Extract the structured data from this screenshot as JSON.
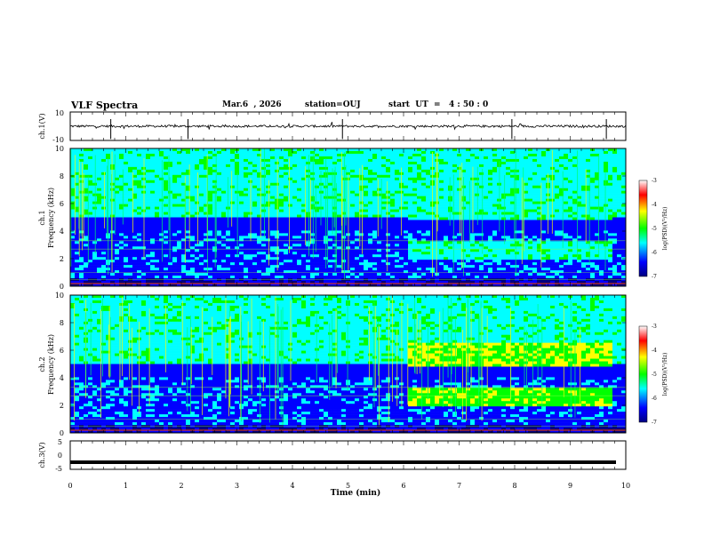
{
  "header": {
    "title": "VLF Spectra",
    "date": "Mar.6  , 2026",
    "station": "station=OUJ",
    "start_ut": "start  UT  =   4 : 50 : 0"
  },
  "chart_data": [
    {
      "type": "line",
      "name": "ch1-waveform",
      "ylabel": "ch.1(V)",
      "ylim": [
        -10,
        10
      ],
      "yticks": [
        "10",
        "-10"
      ],
      "description_value_level": 0,
      "xlim": [
        0,
        10
      ]
    },
    {
      "type": "heatmap",
      "name": "ch1-spectrogram",
      "ylabel": "ch.1\nFrequency (kHz)",
      "ylabel_line1": "ch.1",
      "ylabel_line2": "Frequency (kHz)",
      "xlim": [
        0,
        10
      ],
      "ylim": [
        0,
        10
      ],
      "yticks": [
        "0",
        "2",
        "4",
        "6",
        "8",
        "10"
      ],
      "colorbar": {
        "label": "log(PSD)(V²/Hz)",
        "range": [
          -7,
          -3
        ],
        "ticks": [
          "-3",
          "-4",
          "-5",
          "-6",
          "-7"
        ]
      }
    },
    {
      "type": "heatmap",
      "name": "ch2-spectrogram",
      "ylabel_line1": "ch.2",
      "ylabel_line2": "Frequency (kHz)",
      "xlim": [
        0,
        10
      ],
      "ylim": [
        0,
        10
      ],
      "yticks": [
        "0",
        "2",
        "4",
        "6",
        "8",
        "10"
      ],
      "colorbar": {
        "label": "log(PSD)(V²/Hz)",
        "range": [
          -7,
          -3
        ],
        "ticks": [
          "-3",
          "-4",
          "-5",
          "-6",
          "-7"
        ]
      }
    },
    {
      "type": "line",
      "name": "ch3-waveform",
      "ylabel": "ch.3(V)",
      "ylim": [
        -5,
        5
      ],
      "yticks": [
        "5",
        "0",
        "-5"
      ],
      "level_value": -2.5,
      "xlim": [
        0,
        10
      ],
      "xlabel": "Time (min)",
      "xticks": [
        "0",
        "1",
        "2",
        "3",
        "4",
        "5",
        "6",
        "7",
        "8",
        "9",
        "10"
      ]
    }
  ],
  "colors": {
    "background": "#ffffff",
    "axis": "#000000",
    "colormap": [
      "#000080",
      "#0000ff",
      "#00ffff",
      "#00ff00",
      "#ffff00",
      "#ff0000",
      "#ffffff"
    ]
  }
}
